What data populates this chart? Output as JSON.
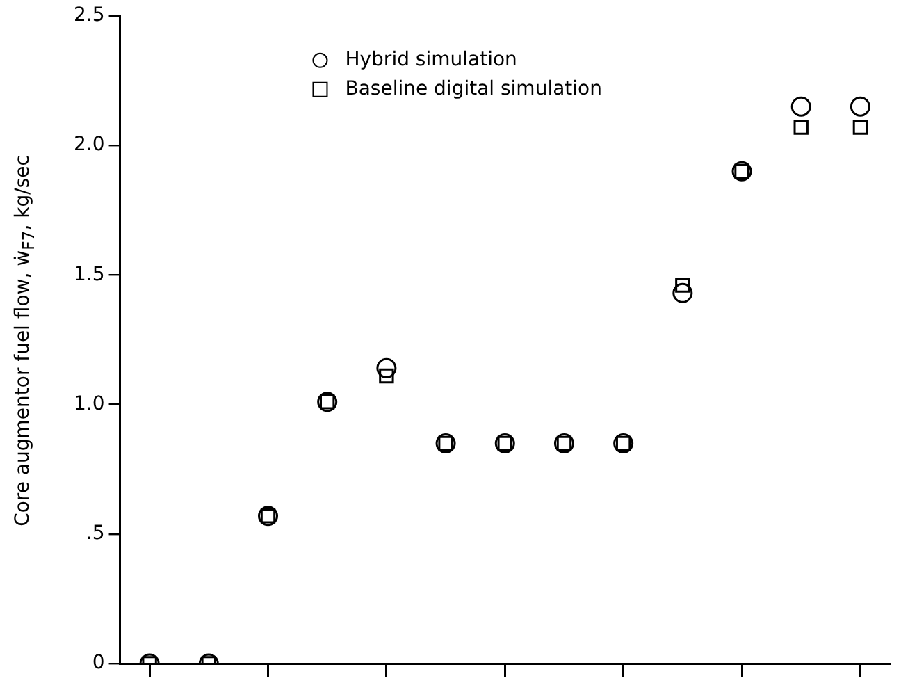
{
  "chart_data": {
    "type": "scatter",
    "ylabel": "Core augmentor fuel flow, ẇ$_{F7}$, kg/sec",
    "categories": [
      null,
      null,
      null,
      null,
      null,
      null,
      null,
      null,
      null,
      null,
      null,
      null,
      null
    ],
    "series": [
      {
        "name": "Hybrid simulation",
        "color": "#000000",
        "marker": "circle",
        "values": [
          0,
          0,
          0.57,
          1.01,
          1.14,
          0.85,
          0.85,
          0.85,
          0.85,
          1.43,
          1.9,
          2.15,
          2.15
        ]
      },
      {
        "name": "Baseline digital simulation",
        "color": "#000000",
        "marker": "square",
        "values": [
          0,
          0,
          0.57,
          1.01,
          1.11,
          0.85,
          0.85,
          0.85,
          0.85,
          1.46,
          1.9,
          2.07,
          2.07
        ]
      }
    ],
    "ylim": [
      0,
      2.5
    ],
    "yticks": [
      {
        "value": 0,
        "label": "0"
      },
      {
        "value": 0.5,
        "label": ".5"
      },
      {
        "value": 1,
        "label": "1.0"
      },
      {
        "value": 1.5,
        "label": "1.5"
      },
      {
        "value": 2,
        "label": "2.0"
      },
      {
        "value": 2.5,
        "label": "2.5"
      }
    ],
    "grid": false,
    "legend": "top",
    "tick_labels": "y"
  }
}
